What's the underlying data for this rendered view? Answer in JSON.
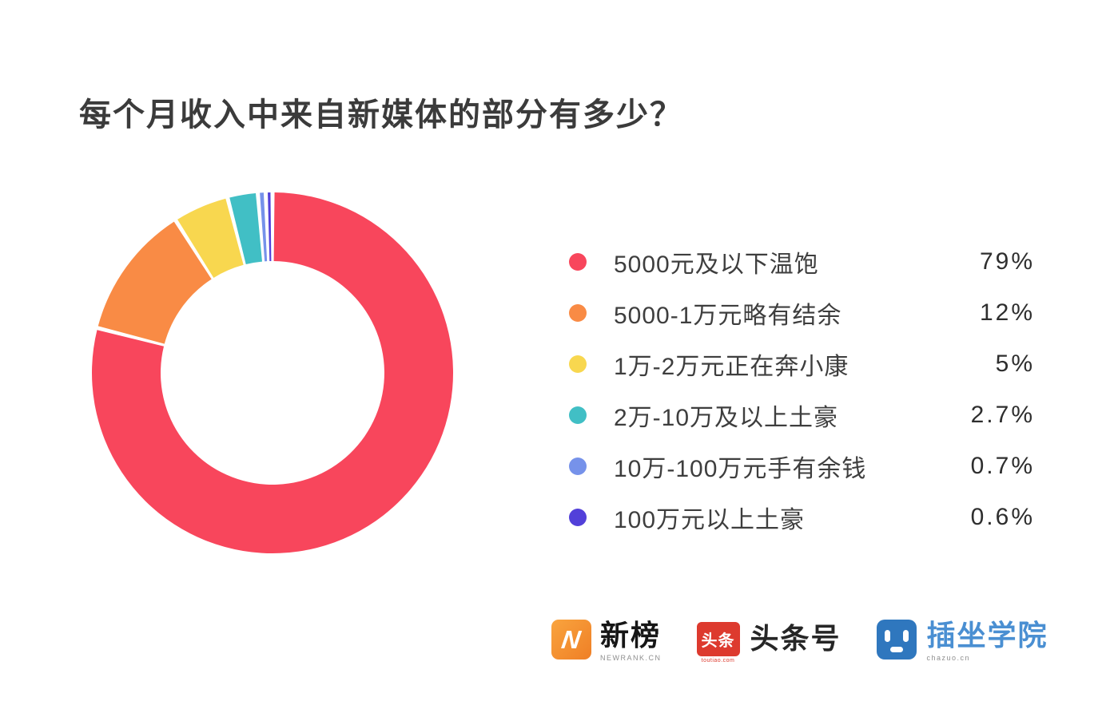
{
  "title": "每个月收入中来自新媒体的部分有多少？",
  "chart_data": {
    "type": "pie",
    "subtype": "donut",
    "title": "每个月收入中来自新媒体的部分有多少？",
    "categories": [
      "5000元及以下温饱",
      "5000-1万元略有结余",
      "1万-2万元正在奔小康",
      "2万-10万及以上土豪",
      "10万-100万元手有余钱",
      "100万元以上土豪"
    ],
    "values": [
      79,
      12,
      5,
      2.7,
      0.7,
      0.6
    ],
    "value_labels": [
      "79%",
      "12%",
      "5%",
      "2.7%",
      "0.7%",
      "0.6%"
    ],
    "colors": [
      "#f8465c",
      "#f98b45",
      "#f8d74f",
      "#41bfc5",
      "#7692ea",
      "#5240d9"
    ],
    "start_angle_deg": 0,
    "direction": "clockwise",
    "inner_radius_ratio": 0.62,
    "slice_gap_deg": 1.3,
    "legend_position": "right"
  },
  "legend": {
    "items": [
      {
        "label": "5000元及以下温饱",
        "value": "79%",
        "color": "#f8465c"
      },
      {
        "label": "5000-1万元略有结余",
        "value": "12%",
        "color": "#f98b45"
      },
      {
        "label": "1万-2万元正在奔小康",
        "value": "5%",
        "color": "#f8d74f"
      },
      {
        "label": "2万-10万及以上土豪",
        "value": "2.7%",
        "color": "#41bfc5"
      },
      {
        "label": "10万-100万元手有余钱",
        "value": "0.7%",
        "color": "#7692ea"
      },
      {
        "label": "100万元以上土豪",
        "value": "0.6%",
        "color": "#5240d9"
      }
    ]
  },
  "footer": {
    "newrank": {
      "icon_letter": "N",
      "name": "新榜",
      "subtext": "NEWRANK.CN"
    },
    "toutiao": {
      "icon_text": "头条",
      "subtext": "toutiao.com",
      "name": "头条号"
    },
    "chazuo": {
      "name": "插坐学院",
      "subtext": "chazuo.cn"
    }
  }
}
